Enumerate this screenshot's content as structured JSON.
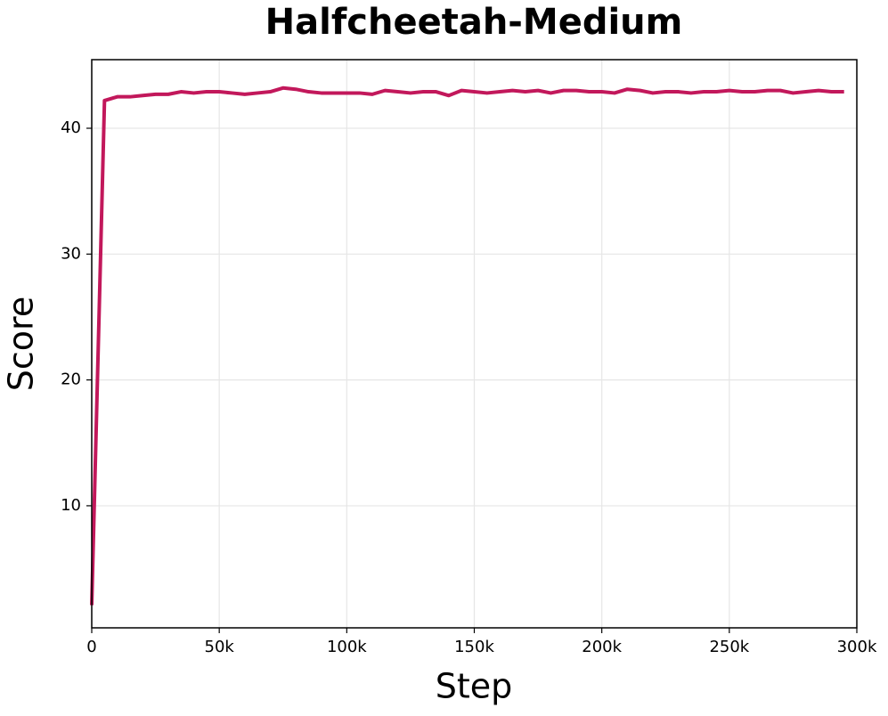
{
  "chart_data": {
    "type": "line",
    "title": "Halfcheetah-Medium",
    "x_label": "Step",
    "y_label": "Score",
    "x": [
      0,
      5000,
      10000,
      15000,
      20000,
      25000,
      30000,
      35000,
      40000,
      45000,
      50000,
      55000,
      60000,
      65000,
      70000,
      75000,
      80000,
      85000,
      90000,
      95000,
      100000,
      105000,
      110000,
      115000,
      120000,
      125000,
      130000,
      135000,
      140000,
      145000,
      150000,
      155000,
      160000,
      165000,
      170000,
      175000,
      180000,
      185000,
      190000,
      195000,
      200000,
      205000,
      210000,
      215000,
      220000,
      225000,
      230000,
      235000,
      240000,
      245000,
      250000,
      255000,
      260000,
      265000,
      270000,
      275000,
      280000,
      285000,
      290000,
      295000
    ],
    "series": [
      {
        "name": "Score",
        "color": "#c2185b",
        "values": [
          2.1,
          42.2,
          42.5,
          42.5,
          42.6,
          42.7,
          42.7,
          42.9,
          42.8,
          42.9,
          42.9,
          42.8,
          42.7,
          42.8,
          42.9,
          43.2,
          43.1,
          42.9,
          42.8,
          42.8,
          42.8,
          42.8,
          42.7,
          43.0,
          42.9,
          42.8,
          42.9,
          42.9,
          42.6,
          43.0,
          42.9,
          42.8,
          42.9,
          43.0,
          42.9,
          43.0,
          42.8,
          43.0,
          43.0,
          42.9,
          42.9,
          42.8,
          43.1,
          43.0,
          42.8,
          42.9,
          42.9,
          42.8,
          42.9,
          42.9,
          43.0,
          42.9,
          42.9,
          43.0,
          43.0,
          42.8,
          42.9,
          43.0,
          42.9,
          42.9
        ]
      }
    ],
    "xlim": [
      0,
      300000
    ],
    "ylim": [
      0.3,
      45.45
    ],
    "xticks": [
      0,
      {
        "value": 50000,
        "label": "50k"
      },
      {
        "value": 100000,
        "label": "100k"
      },
      {
        "value": 150000,
        "label": "150k"
      },
      {
        "value": 200000,
        "label": "200k"
      },
      {
        "value": 250000,
        "label": "250k"
      },
      {
        "value": 300000,
        "label": "300k"
      }
    ],
    "yticks": [
      10,
      20,
      30,
      40
    ],
    "grid": true
  }
}
